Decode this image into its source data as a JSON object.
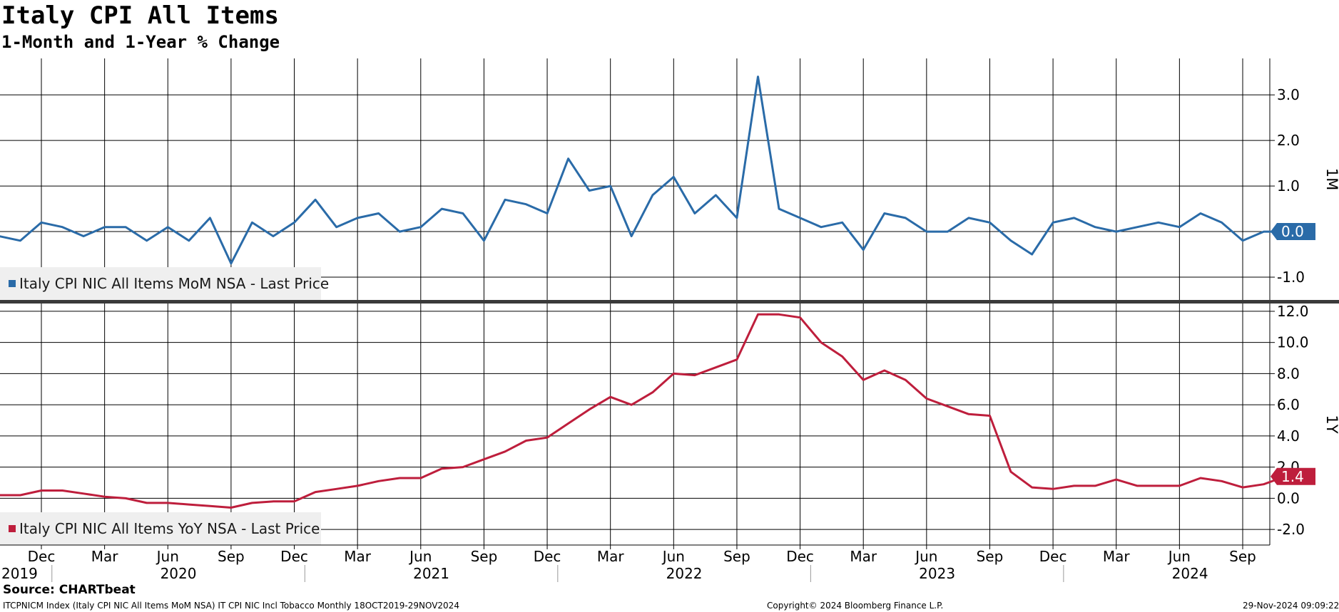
{
  "header": {
    "title": "Italy CPI All Items",
    "subtitle": "1-Month and 1-Year % Change"
  },
  "footer": {
    "source": "Source: CHARTbeat",
    "ticker": "ITCPNICM Index (Italy CPI NIC All Items MoM NSA) IT CPI NIC Incl Tobacco  Monthly 18OCT2019-29NOV2024",
    "copyright": "Copyright© 2024 Bloomberg Finance L.P.",
    "timestamp": "29-Nov-2024 09:09:22"
  },
  "colors": {
    "mom": "#2a6ba8",
    "yoy": "#be1e3c",
    "grid": "#000000"
  },
  "chart_data": [
    {
      "type": "line",
      "panel": "top",
      "axis_label": "1M",
      "ylim": [
        -1.5,
        3.8
      ],
      "yticks": [
        -1.0,
        0.0,
        1.0,
        2.0,
        3.0
      ],
      "ytick_labels": [
        "-1.0",
        "0.0",
        "1.0",
        "2.0",
        "3.0"
      ],
      "grid": true,
      "legend": "Italy CPI NIC All Items MoM NSA - Last Price",
      "legend_position": "bottom-left",
      "last_value_label": "0.0",
      "series": [
        {
          "name": "Italy CPI NIC All Items MoM NSA - Last Price",
          "start": "2019-10",
          "values": [
            -0.1,
            -0.2,
            0.2,
            0.1,
            -0.1,
            0.1,
            0.1,
            -0.2,
            0.1,
            -0.2,
            0.3,
            -0.7,
            0.2,
            -0.1,
            0.2,
            0.7,
            0.1,
            0.3,
            0.4,
            0.0,
            0.1,
            0.5,
            0.4,
            -0.2,
            0.7,
            0.6,
            0.4,
            1.6,
            0.9,
            1.0,
            -0.1,
            0.8,
            1.2,
            0.4,
            0.8,
            0.3,
            3.4,
            0.5,
            0.3,
            0.1,
            0.2,
            -0.4,
            0.4,
            0.3,
            0.0,
            0.0,
            0.3,
            0.2,
            -0.2,
            -0.5,
            0.2,
            0.3,
            0.1,
            0.0,
            0.1,
            0.2,
            0.1,
            0.4,
            0.2,
            -0.2,
            0.0,
            0.0
          ]
        }
      ]
    },
    {
      "type": "line",
      "panel": "bottom",
      "axis_label": "1Y",
      "ylim": [
        -3.0,
        12.5
      ],
      "yticks": [
        -2.0,
        0.0,
        2.0,
        4.0,
        6.0,
        8.0,
        10.0,
        12.0
      ],
      "ytick_labels": [
        "-2.0",
        "0.0",
        "2.0",
        "4.0",
        "6.0",
        "8.0",
        "10.0",
        "12.0"
      ],
      "grid": true,
      "legend": "Italy CPI NIC All Items YoY NSA - Last Price",
      "legend_position": "bottom-left",
      "last_value_label": "1.4",
      "series": [
        {
          "name": "Italy CPI NIC All Items YoY NSA - Last Price",
          "start": "2019-10",
          "values": [
            0.2,
            0.2,
            0.5,
            0.5,
            0.3,
            0.1,
            0.0,
            -0.3,
            -0.3,
            -0.4,
            -0.5,
            -0.6,
            -0.3,
            -0.2,
            -0.2,
            0.4,
            0.6,
            0.8,
            1.1,
            1.3,
            1.3,
            1.9,
            2.0,
            2.5,
            3.0,
            3.7,
            3.9,
            4.8,
            5.7,
            6.5,
            6.0,
            6.8,
            8.0,
            7.9,
            8.4,
            8.9,
            11.8,
            11.8,
            11.6,
            10.0,
            9.1,
            7.6,
            8.2,
            7.6,
            6.4,
            5.9,
            5.4,
            5.3,
            1.7,
            0.7,
            0.6,
            0.8,
            0.8,
            1.2,
            0.8,
            0.8,
            0.8,
            1.3,
            1.1,
            0.7,
            0.9,
            1.4
          ]
        }
      ]
    }
  ],
  "x_axis": {
    "month_labels": [
      {
        "label": "Dec",
        "date": "2019-12"
      },
      {
        "label": "Mar",
        "date": "2020-03"
      },
      {
        "label": "Jun",
        "date": "2020-06"
      },
      {
        "label": "Sep",
        "date": "2020-09"
      },
      {
        "label": "Dec",
        "date": "2020-12"
      },
      {
        "label": "Mar",
        "date": "2021-03"
      },
      {
        "label": "Jun",
        "date": "2021-06"
      },
      {
        "label": "Sep",
        "date": "2021-09"
      },
      {
        "label": "Dec",
        "date": "2021-12"
      },
      {
        "label": "Mar",
        "date": "2022-03"
      },
      {
        "label": "Jun",
        "date": "2022-06"
      },
      {
        "label": "Sep",
        "date": "2022-09"
      },
      {
        "label": "Dec",
        "date": "2022-12"
      },
      {
        "label": "Mar",
        "date": "2023-03"
      },
      {
        "label": "Jun",
        "date": "2023-06"
      },
      {
        "label": "Sep",
        "date": "2023-09"
      },
      {
        "label": "Dec",
        "date": "2023-12"
      },
      {
        "label": "Mar",
        "date": "2024-03"
      },
      {
        "label": "Jun",
        "date": "2024-06"
      },
      {
        "label": "Sep",
        "date": "2024-09"
      }
    ],
    "year_labels": [
      {
        "label": "2019",
        "date": "2019"
      },
      {
        "label": "2020",
        "date": "2020"
      },
      {
        "label": "2021",
        "date": "2021"
      },
      {
        "label": "2022",
        "date": "2022"
      },
      {
        "label": "2023",
        "date": "2023"
      },
      {
        "label": "2024",
        "date": "2024"
      }
    ]
  }
}
